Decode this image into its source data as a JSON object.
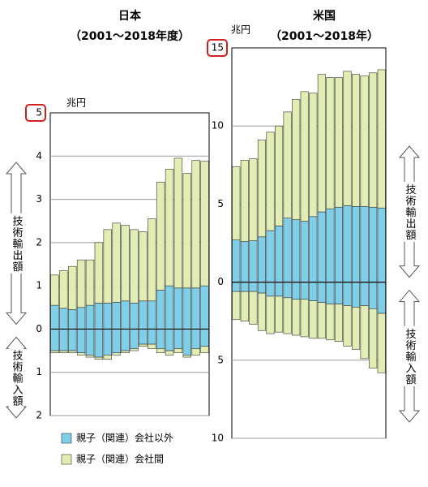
{
  "chart_data": [
    {
      "type": "bar",
      "title": "日本",
      "subtitle": "（2001～2018年度）",
      "unit": "兆円",
      "categories": [
        null,
        null,
        null,
        null,
        null,
        null,
        null,
        null,
        null,
        null,
        null,
        null,
        null,
        null,
        null,
        null,
        null,
        null
      ],
      "series": [
        {
          "name": "親子（関連）会社以外",
          "color": "#80cfe9",
          "values": [
            0.55,
            0.48,
            0.45,
            0.5,
            0.55,
            0.6,
            0.6,
            0.62,
            0.65,
            0.6,
            0.65,
            0.65,
            0.9,
            1.0,
            0.95,
            0.95,
            0.95,
            1.0
          ],
          "import_values": [
            -0.5,
            -0.5,
            -0.5,
            -0.55,
            -0.6,
            -0.65,
            -0.6,
            -0.55,
            -0.5,
            -0.45,
            -0.35,
            -0.35,
            -0.45,
            -0.5,
            -0.45,
            -0.6,
            -0.45,
            -0.4
          ]
        },
        {
          "name": "親子（関連）会社間",
          "color": "#e2edb4",
          "values": [
            0.7,
            0.87,
            1.0,
            1.1,
            1.05,
            1.4,
            1.7,
            1.83,
            1.75,
            1.7,
            1.6,
            1.9,
            2.5,
            2.7,
            3.0,
            2.65,
            2.95,
            2.88
          ],
          "import_values": [
            -0.05,
            -0.05,
            -0.05,
            -0.05,
            -0.05,
            -0.05,
            -0.1,
            -0.05,
            -0.05,
            -0.05,
            -0.05,
            -0.1,
            -0.1,
            -0.1,
            -0.1,
            -0.05,
            -0.15,
            -0.15
          ]
        }
      ],
      "ylim": [
        -2,
        5
      ],
      "yticks": [
        5,
        4,
        3,
        2,
        1,
        0,
        {
          "value": -1,
          "label": "1"
        },
        {
          "value": -2,
          "label": "2"
        }
      ],
      "grid": true,
      "annotations": [
        "技術輸出額",
        "技術輸入額"
      ]
    },
    {
      "type": "bar",
      "title": "米国",
      "subtitle": "（2001～2018年）",
      "unit": "兆円",
      "categories": [
        null,
        null,
        null,
        null,
        null,
        null,
        null,
        null,
        null,
        null,
        null,
        null,
        null,
        null,
        null,
        null,
        null,
        null
      ],
      "series": [
        {
          "name": "親子（関連）会社以外",
          "color": "#80cfe9",
          "values": [
            2.7,
            2.6,
            2.65,
            2.9,
            3.3,
            3.6,
            4.1,
            4.0,
            3.9,
            4.2,
            4.5,
            4.7,
            4.8,
            4.9,
            4.85,
            4.85,
            4.8,
            4.75
          ],
          "import_values": [
            -0.6,
            -0.6,
            -0.6,
            -0.7,
            -0.9,
            -0.9,
            -1.0,
            -1.1,
            -1.1,
            -1.2,
            -1.3,
            -1.4,
            -1.4,
            -1.5,
            -1.6,
            -1.5,
            -1.7,
            -2.0
          ]
        },
        {
          "name": "親子（関連）会社間",
          "color": "#e2edb4",
          "values": [
            4.7,
            5.2,
            5.25,
            6.2,
            6.3,
            6.4,
            6.8,
            7.7,
            8.3,
            7.9,
            8.8,
            8.4,
            8.3,
            8.6,
            8.45,
            8.35,
            8.6,
            8.85
          ],
          "import_values": [
            -1.8,
            -1.9,
            -2.1,
            -2.4,
            -2.4,
            -2.3,
            -2.3,
            -2.3,
            -2.4,
            -2.4,
            -2.3,
            -2.3,
            -2.4,
            -2.6,
            -2.7,
            -3.4,
            -3.8,
            -3.8
          ]
        }
      ],
      "ylim": [
        -10,
        15
      ],
      "yticks": [
        15,
        10,
        5,
        0,
        {
          "value": -5,
          "label": "5"
        },
        {
          "value": -10,
          "label": "10"
        }
      ],
      "grid": true,
      "annotations": [
        "技術輸出額",
        "技術輸入額"
      ]
    }
  ]
}
